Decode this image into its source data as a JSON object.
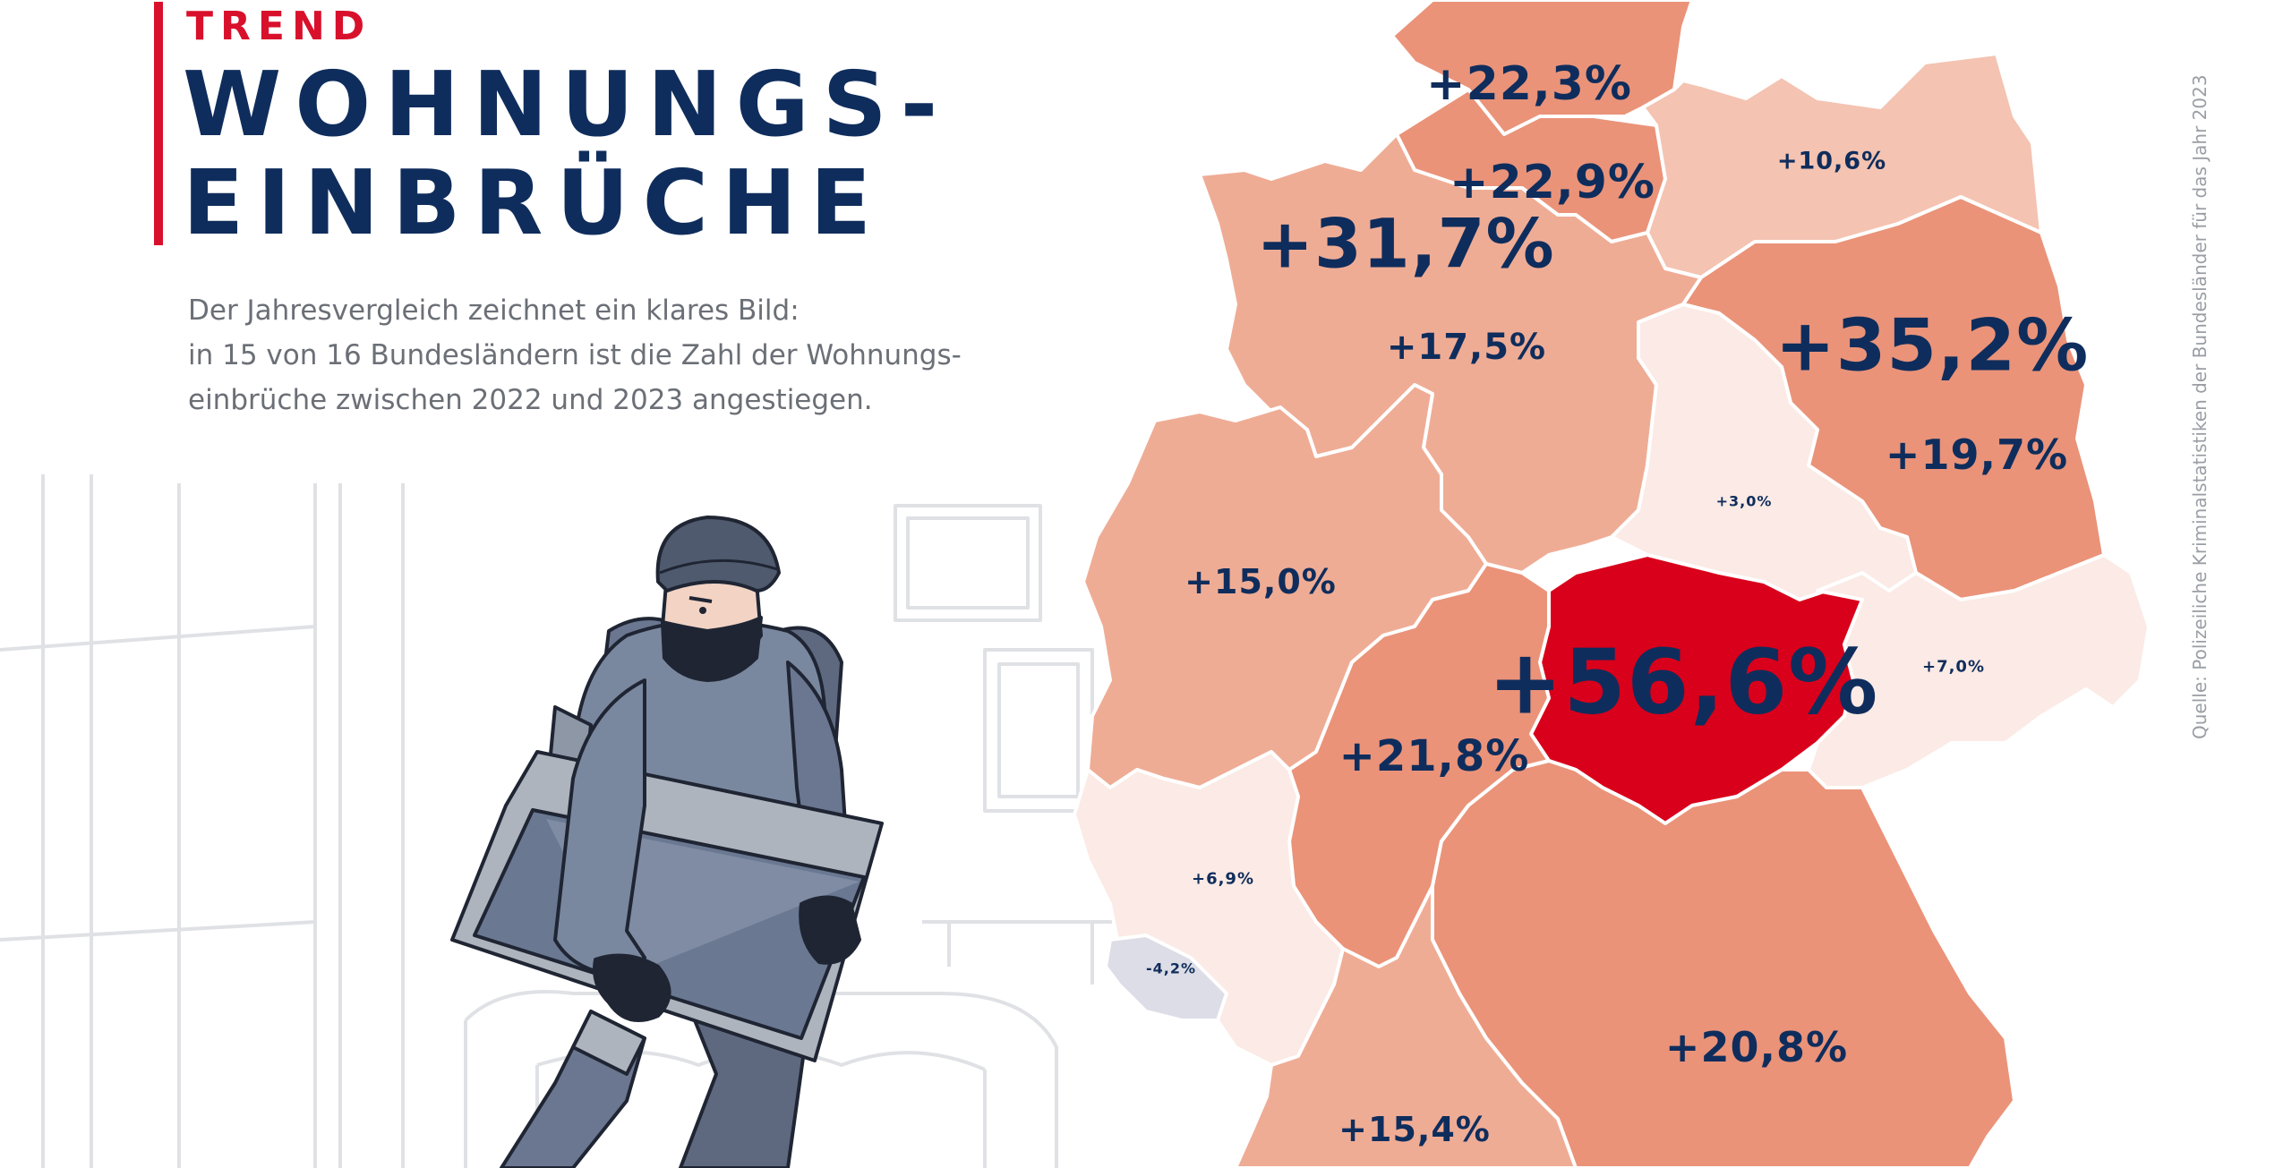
{
  "kicker": "TREND",
  "title": {
    "line1": "WOHNUNGS-",
    "line2": "EINBRÜCHE"
  },
  "intro": {
    "line1": "Der Jahresvergleich zeichnet ein klares Bild:",
    "line2": "in 15 von 16 Bundesländern ist die Zahl der Wohnungs-",
    "line3": "einbrüche zwischen 2022 und 2023 angestiegen."
  },
  "source": "Quelle: Polizeiliche Kriminalstatistiken der Bundesländer für das Jahr 2023",
  "colors": {
    "accent_red": "#d9102b",
    "headline_navy": "#0f2d5c",
    "label_navy": "#0f2d5c",
    "map_border": "#ffffff",
    "decrease": "#dcdde6",
    "level_lowest_increase": "#fbeae5",
    "level_low_increase": "#f4c3b1",
    "level_medium_increase": "#efac95",
    "level_high_increase": "#ea9379",
    "level_very_high_increase": "#dc3c2c",
    "level_highest_increase": "#d9001b"
  },
  "illustration": "burglar-carrying-monitor",
  "map": {
    "regions": [
      {
        "key": "sh",
        "label": "+22,3%",
        "value": 22.3,
        "level": "high"
      },
      {
        "key": "hh",
        "label": "+22,9%",
        "value": 22.9,
        "level": "high"
      },
      {
        "key": "mv",
        "label": "+10,6%",
        "value": 10.6,
        "level": "low"
      },
      {
        "key": "hb",
        "label": "+31,7%",
        "value": 31.7,
        "level": "very_high"
      },
      {
        "key": "ni",
        "label": "+17,5%",
        "value": 17.5,
        "level": "medium"
      },
      {
        "key": "be",
        "label": "+35,2%",
        "value": 35.2,
        "level": "very_high"
      },
      {
        "key": "bb",
        "label": "+19,7%",
        "value": 19.7,
        "level": "high"
      },
      {
        "key": "st",
        "label": "+3,0%",
        "value": 3.0,
        "level": "lowest"
      },
      {
        "key": "nw",
        "label": "+15,0%",
        "value": 15.0,
        "level": "medium"
      },
      {
        "key": "th",
        "label": "+56,6%",
        "value": 56.6,
        "level": "highest"
      },
      {
        "key": "sn",
        "label": "+7,0%",
        "value": 7.0,
        "level": "lowest"
      },
      {
        "key": "he",
        "label": "+21,8%",
        "value": 21.8,
        "level": "high"
      },
      {
        "key": "rp",
        "label": "+6,9%",
        "value": 6.9,
        "level": "lowest"
      },
      {
        "key": "sl",
        "label": "-4,2%",
        "value": -4.2,
        "level": "decrease"
      },
      {
        "key": "by",
        "label": "+20,8%",
        "value": 20.8,
        "level": "high"
      },
      {
        "key": "bw",
        "label": "+15,4%",
        "value": 15.4,
        "level": "medium"
      }
    ]
  }
}
